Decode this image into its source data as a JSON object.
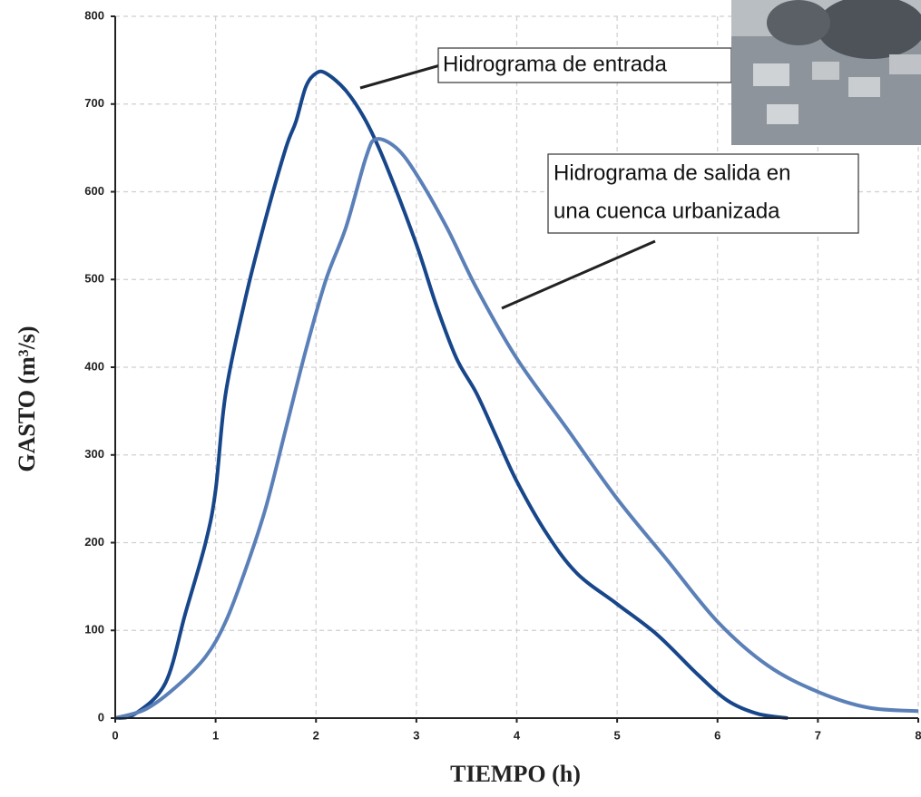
{
  "chart_data": {
    "type": "line",
    "x_label": "TIEMPO (h)",
    "y_label": "GASTO (m³/s)",
    "xlim": [
      0,
      8
    ],
    "xticks": [
      0,
      1,
      2,
      3,
      4,
      5,
      6,
      7,
      8
    ],
    "ylim": [
      0,
      800
    ],
    "yticks": [
      0,
      100,
      200,
      300,
      400,
      500,
      600,
      700,
      800
    ],
    "grid": true,
    "series": [
      {
        "color": "#17468a",
        "x": [
          0,
          0.2,
          0.5,
          0.7,
          0.9,
          1,
          1.1,
          1.3,
          1.5,
          1.7,
          1.8,
          1.9,
          2,
          2.1,
          2.3,
          2.5,
          2.7,
          3,
          3.2,
          3.4,
          3.6,
          3.8,
          4,
          4.3,
          4.6,
          5,
          5.4,
          5.8,
          6.1,
          6.4,
          6.7
        ],
        "values": [
          0,
          5,
          40,
          120,
          200,
          260,
          370,
          480,
          570,
          650,
          680,
          720,
          735,
          735,
          715,
          680,
          630,
          540,
          470,
          410,
          370,
          320,
          270,
          210,
          165,
          130,
          95,
          50,
          20,
          5,
          0
        ]
      },
      {
        "color": "#5b80b8",
        "x": [
          0,
          0.3,
          0.6,
          0.9,
          1.1,
          1.3,
          1.5,
          1.7,
          1.9,
          2.1,
          2.3,
          2.5,
          2.6,
          2.8,
          3,
          3.3,
          3.6,
          4,
          4.5,
          5,
          5.5,
          6,
          6.5,
          7,
          7.5,
          8
        ],
        "values": [
          0,
          10,
          35,
          70,
          110,
          170,
          240,
          330,
          420,
          500,
          560,
          640,
          660,
          650,
          620,
          560,
          490,
          410,
          330,
          250,
          180,
          110,
          60,
          30,
          12,
          8
        ]
      }
    ],
    "annotations": [
      {
        "lines": [
          "Hidrograma de entrada"
        ]
      },
      {
        "lines": [
          "Hidrograma de salida en",
          "una cuenca urbanizada"
        ]
      }
    ]
  }
}
